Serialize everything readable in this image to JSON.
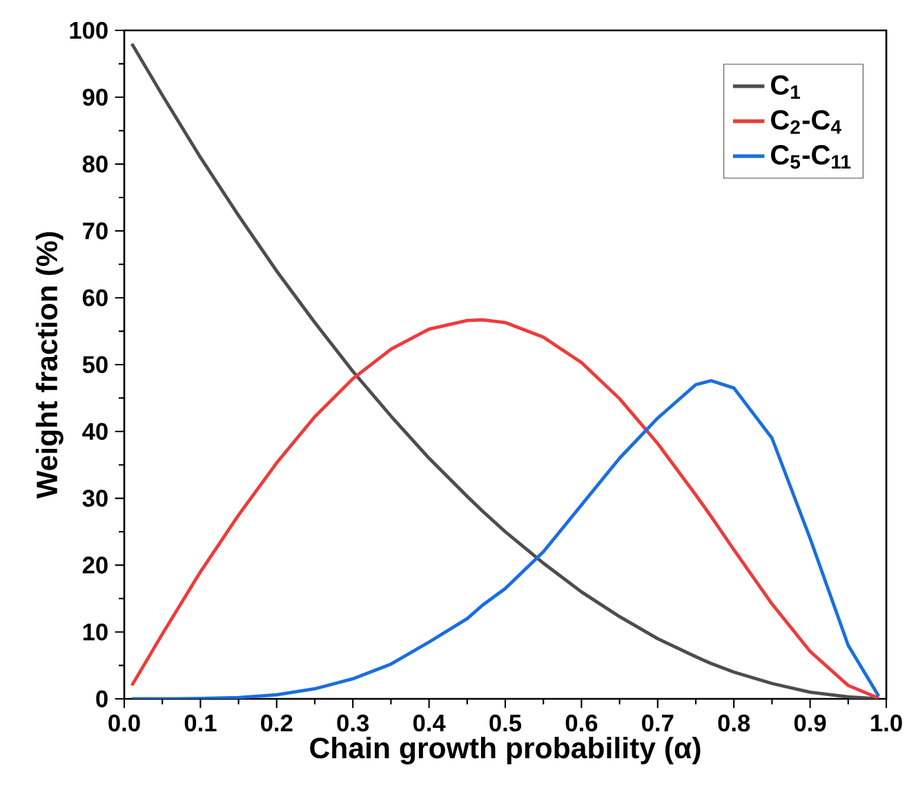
{
  "chart_data": {
    "type": "line",
    "xlabel": "Chain growth probability (α)",
    "ylabel": "Weight fraction (%)",
    "x": [
      0.01,
      0.05,
      0.1,
      0.15,
      0.2,
      0.25,
      0.3,
      0.35,
      0.4,
      0.45,
      0.47,
      0.5,
      0.55,
      0.6,
      0.65,
      0.7,
      0.75,
      0.77,
      0.8,
      0.85,
      0.9,
      0.95,
      0.99
    ],
    "series": [
      {
        "name": "C$_{1}$",
        "color": "#4d4d4d",
        "values": [
          98,
          90.3,
          81,
          72.3,
          64,
          56.3,
          49,
          42.3,
          36,
          30.3,
          28.1,
          25,
          20.3,
          16,
          12.3,
          9,
          6.3,
          5.3,
          4,
          2.3,
          1,
          0.3,
          0
        ]
      },
      {
        "name": "C$_{2}$-C$_{4}$",
        "color": "#ee3b3b",
        "values": [
          2,
          9.7,
          19,
          27.5,
          35.3,
          42.2,
          47.9,
          52.3,
          55.3,
          56.6,
          56.7,
          56.3,
          54.1,
          50.3,
          44.9,
          38.2,
          30.5,
          27.3,
          22.3,
          14.2,
          7.1,
          2,
          0.1
        ]
      },
      {
        "name": "C$_{5}$-C$_{11}$",
        "color": "#1a6ee0",
        "values": [
          0,
          0,
          0.05,
          0.2,
          0.6,
          1.5,
          3,
          5.2,
          8.5,
          12,
          14,
          16.5,
          22,
          29,
          36,
          42,
          47,
          47.6,
          46.5,
          39,
          24,
          8,
          0.4
        ]
      }
    ],
    "xlim": [
      0,
      1
    ],
    "ylim": [
      0,
      100
    ],
    "xticks": [
      {
        "value": 0,
        "label": "0.0"
      },
      0.1,
      0.2,
      0.3,
      0.4,
      0.5,
      0.6,
      0.7,
      0.8,
      0.9,
      {
        "value": 1,
        "label": "1.0"
      }
    ],
    "yticks": [
      0,
      10,
      20,
      30,
      40,
      50,
      60,
      70,
      80,
      90,
      100
    ],
    "legend": "top right",
    "grid": false,
    "marker": "none",
    "line_style": "solid"
  }
}
